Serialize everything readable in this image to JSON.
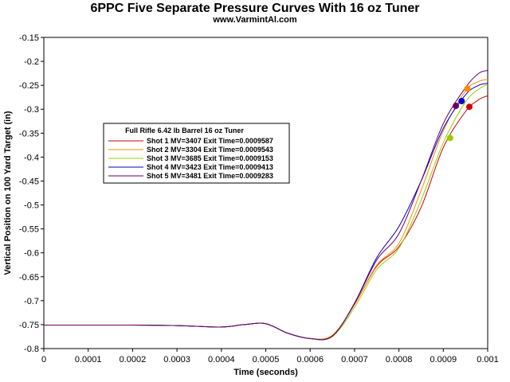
{
  "chart_data": {
    "type": "line",
    "title": "6PPC Five Separate Pressure Curves With 16 oz Tuner",
    "subtitle": "www.VarmintAl.com",
    "xlabel": "Time (seconds)",
    "ylabel": "Vertical Position on 100 Yard Target (in)",
    "xlim": [
      0,
      0.001
    ],
    "ylim": [
      -0.8,
      -0.15
    ],
    "x_ticks": [
      "0",
      "0.0001",
      "0.0002",
      "0.0003",
      "0.0004",
      "0.0005",
      "0.0006",
      "0.0007",
      "0.0008",
      "0.0009",
      "0.001"
    ],
    "y_ticks": [
      "-0.15",
      "-0.2",
      "-0.25",
      "-0.3",
      "-0.35",
      "-0.4",
      "-0.45",
      "-0.5",
      "-0.55",
      "-0.6",
      "-0.65",
      "-0.7",
      "-0.75",
      "-0.8"
    ],
    "grid": false,
    "legend_title": "Full Rifle 6.42 lb Barrel 16 oz Tuner",
    "legend_position": "upper-left",
    "series": [
      {
        "name": "Shot 1 MV=3407 Exit Time=0.0009587",
        "color": "#cc0000",
        "exit": [
          0.0009587,
          -0.295
        ],
        "x": [
          0,
          0.0001,
          0.0002,
          0.0003,
          0.0004,
          0.00045,
          0.0005,
          0.00055,
          0.0006,
          0.00065,
          0.0007,
          0.00075,
          0.0008,
          0.00085,
          0.0009,
          0.00095,
          0.00098,
          0.001
        ],
        "y": [
          -0.751,
          -0.751,
          -0.751,
          -0.752,
          -0.755,
          -0.75,
          -0.748,
          -0.768,
          -0.779,
          -0.773,
          -0.708,
          -0.628,
          -0.587,
          -0.505,
          -0.38,
          -0.305,
          -0.28,
          -0.272
        ]
      },
      {
        "name": "Shot 2 MV=3304 Exit Time=0.0009543",
        "color": "#ff8c00",
        "exit": [
          0.0009543,
          -0.257
        ],
        "x": [
          0,
          0.0001,
          0.0002,
          0.0003,
          0.0004,
          0.00045,
          0.0005,
          0.00055,
          0.0006,
          0.00065,
          0.0007,
          0.00075,
          0.0008,
          0.00085,
          0.0009,
          0.00095,
          0.00098,
          0.001
        ],
        "y": [
          -0.751,
          -0.751,
          -0.751,
          -0.752,
          -0.755,
          -0.75,
          -0.748,
          -0.768,
          -0.779,
          -0.772,
          -0.708,
          -0.626,
          -0.58,
          -0.47,
          -0.345,
          -0.262,
          -0.242,
          -0.238
        ]
      },
      {
        "name": "Shot 3 MV=3685 Exit Time=0.0009153",
        "color": "#99cc00",
        "exit": [
          0.0009153,
          -0.36
        ],
        "x": [
          0,
          0.0001,
          0.0002,
          0.0003,
          0.0004,
          0.00045,
          0.0005,
          0.00055,
          0.0006,
          0.00065,
          0.0007,
          0.00075,
          0.0008,
          0.00085,
          0.0009,
          0.00095,
          0.00098,
          0.001
        ],
        "y": [
          -0.751,
          -0.751,
          -0.751,
          -0.752,
          -0.755,
          -0.75,
          -0.748,
          -0.768,
          -0.779,
          -0.775,
          -0.714,
          -0.635,
          -0.59,
          -0.49,
          -0.37,
          -0.285,
          -0.258,
          -0.248
        ]
      },
      {
        "name": "Shot 4 MV=3423 Exit Time=0.0009413",
        "color": "#0000cc",
        "exit": [
          0.0009413,
          -0.283
        ],
        "x": [
          0,
          0.0001,
          0.0002,
          0.0003,
          0.0004,
          0.00045,
          0.0005,
          0.00055,
          0.0006,
          0.00065,
          0.0007,
          0.00075,
          0.0008,
          0.00085,
          0.0009,
          0.00095,
          0.00098,
          0.001
        ],
        "y": [
          -0.751,
          -0.751,
          -0.751,
          -0.752,
          -0.755,
          -0.75,
          -0.748,
          -0.768,
          -0.779,
          -0.774,
          -0.705,
          -0.61,
          -0.545,
          -0.45,
          -0.34,
          -0.27,
          -0.25,
          -0.246
        ]
      },
      {
        "name": "Shot 5 MV=3481 Exit Time=0.0009283",
        "color": "#660066",
        "exit": [
          0.0009283,
          -0.293
        ],
        "x": [
          0,
          0.0001,
          0.0002,
          0.0003,
          0.0004,
          0.00045,
          0.0005,
          0.00055,
          0.0006,
          0.00065,
          0.0007,
          0.00075,
          0.0008,
          0.00085,
          0.0009,
          0.00095,
          0.00098,
          0.001
        ],
        "y": [
          -0.751,
          -0.751,
          -0.751,
          -0.752,
          -0.755,
          -0.75,
          -0.748,
          -0.768,
          -0.779,
          -0.774,
          -0.706,
          -0.615,
          -0.56,
          -0.45,
          -0.33,
          -0.255,
          -0.225,
          -0.219
        ]
      }
    ]
  }
}
